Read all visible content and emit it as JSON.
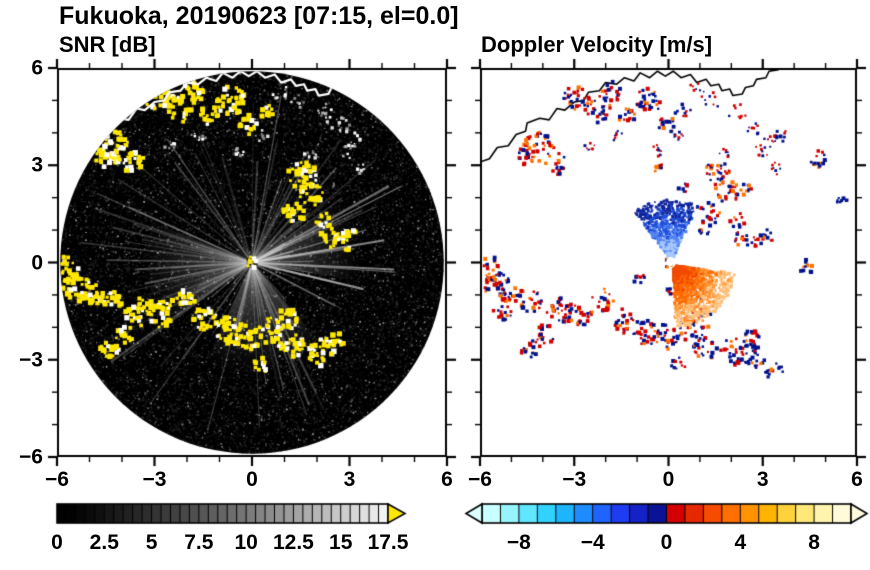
{
  "figure": {
    "title": "Fukuoka, 20190623 [07:15, el=0.0]"
  },
  "chart_data": [
    {
      "id": "snr",
      "type": "heatmap",
      "subtype": "radar-ppi-scan",
      "title": "SNR [dB]",
      "xlim": [
        -6,
        6
      ],
      "ylim": [
        -6,
        6
      ],
      "xticks": [
        -6,
        -3,
        0,
        3,
        6
      ],
      "yticks": [
        6,
        3,
        0,
        -3,
        -6
      ],
      "xtick_labels": [
        "−6",
        "−3",
        "0",
        "3",
        "6"
      ],
      "ytick_labels": [
        "6",
        "3",
        "0",
        "−3",
        "−6"
      ],
      "minor_tick_step": 1,
      "scan_radius": 5.9,
      "scan_background": "#000000",
      "echo_color": "#ffe800",
      "echo_color_alt": "#ffffff",
      "clutter_colors": [
        "#ffffff",
        "#e0e0e0",
        "#ababab",
        "#808080"
      ],
      "coastline_color": "#ffffff",
      "sidelobe_fans_az_deg": [
        [
          140,
          205
        ],
        [
          235,
          292
        ],
        [
          55,
          100
        ]
      ],
      "strong_echoes": [
        [
          -4.15,
          3.55,
          0.5
        ],
        [
          -3.6,
          3.05,
          0.35
        ],
        [
          -4.55,
          3.25,
          0.3
        ],
        [
          -2.95,
          5.1,
          0.4
        ],
        [
          -2.3,
          4.75,
          0.45
        ],
        [
          -1.85,
          5.25,
          0.35
        ],
        [
          -1.3,
          4.55,
          0.3
        ],
        [
          -0.65,
          5.0,
          0.45
        ],
        [
          -0.1,
          4.25,
          0.3
        ],
        [
          0.45,
          4.7,
          0.25
        ],
        [
          1.55,
          2.7,
          0.45
        ],
        [
          1.85,
          2.15,
          0.4
        ],
        [
          1.3,
          1.5,
          0.35
        ],
        [
          2.4,
          0.75,
          0.3
        ],
        [
          3.0,
          0.7,
          0.35
        ],
        [
          2.2,
          1.3,
          0.25
        ],
        [
          -5.7,
          -0.2,
          0.4
        ],
        [
          -5.4,
          -0.75,
          0.45
        ],
        [
          -4.95,
          -1.05,
          0.4
        ],
        [
          -4.35,
          -1.2,
          0.35
        ],
        [
          -3.45,
          -1.5,
          0.45
        ],
        [
          -2.8,
          -1.6,
          0.4
        ],
        [
          -2.1,
          -1.15,
          0.35
        ],
        [
          -1.45,
          -1.8,
          0.4
        ],
        [
          -0.7,
          -2.1,
          0.45
        ],
        [
          -0.1,
          -2.3,
          0.4
        ],
        [
          0.55,
          -2.1,
          0.4
        ],
        [
          1.05,
          -1.75,
          0.35
        ],
        [
          1.2,
          -2.6,
          0.4
        ],
        [
          2.1,
          -2.75,
          0.45
        ],
        [
          -4.4,
          -2.6,
          0.35
        ],
        [
          -3.9,
          -2.2,
          0.3
        ],
        [
          0.3,
          -3.15,
          0.25
        ],
        [
          2.6,
          -2.35,
          0.3
        ],
        [
          0.0,
          0.0,
          0.18
        ]
      ],
      "clutter_echoes": [
        [
          0.9,
          5.3,
          0.3
        ],
        [
          1.4,
          5.0,
          0.25
        ],
        [
          2.2,
          4.6,
          0.3
        ],
        [
          2.75,
          4.2,
          0.3
        ],
        [
          3.2,
          3.8,
          0.25
        ],
        [
          0.3,
          3.9,
          0.2
        ],
        [
          -0.4,
          3.45,
          0.2
        ],
        [
          1.8,
          3.35,
          0.2
        ],
        [
          2.95,
          3.45,
          0.25
        ],
        [
          -1.6,
          3.9,
          0.2
        ],
        [
          3.4,
          2.9,
          0.2
        ],
        [
          -2.5,
          3.6,
          0.2
        ]
      ],
      "colorbar": {
        "min": 0,
        "max": 17.5,
        "ticks": [
          0,
          2.5,
          5,
          7.5,
          10,
          12.5,
          15,
          17.5
        ],
        "tick_labels": [
          "0",
          "2.5",
          "5",
          "7.5",
          "10",
          "12.5",
          "15",
          "17.5"
        ],
        "minor_step": 0.5,
        "ramp": [
          "#000000",
          "#f2f2f2"
        ],
        "over_arrow_color": "#ffe800"
      }
    },
    {
      "id": "doppler",
      "type": "heatmap",
      "subtype": "radar-ppi-scan",
      "title": "Doppler Velocity [m/s]",
      "xlim": [
        -6,
        6
      ],
      "ylim": [
        -6,
        6
      ],
      "xticks": [
        -6,
        -3,
        0,
        3,
        6
      ],
      "yticks": [
        6,
        3,
        0,
        -3,
        -6
      ],
      "xtick_labels": [
        "−6",
        "−3",
        "0",
        "3",
        "6"
      ],
      "ytick_labels": [],
      "minor_tick_step": 1,
      "background": "#ffffff",
      "coastline_color": "#000000",
      "echo_colors": [
        "#00128c",
        "#cf0000",
        "#ff7300"
      ],
      "extra_echoes": [
        [
          0.75,
          -0.95,
          0.4
        ],
        [
          0.2,
          -0.8,
          0.25
        ],
        [
          -0.9,
          -0.55,
          0.2
        ],
        [
          3.6,
          3.9,
          0.25
        ],
        [
          4.8,
          3.2,
          0.3
        ],
        [
          5.5,
          1.95,
          0.2
        ],
        [
          4.4,
          -0.15,
          0.25
        ],
        [
          2.7,
          -2.9,
          0.4
        ],
        [
          3.35,
          -3.3,
          0.3
        ],
        [
          1.15,
          1.05,
          0.2
        ],
        [
          0.5,
          2.35,
          0.2
        ],
        [
          -0.3,
          2.9,
          0.15
        ],
        [
          -5.3,
          -1.6,
          0.3
        ],
        [
          2.5,
          2.2,
          0.25
        ]
      ],
      "fans": [
        {
          "name": "toward-fan",
          "cx": 0.05,
          "cy": 0.1,
          "az_deg": [
            -38,
            26
          ],
          "r": [
            0.12,
            1.95
          ],
          "n": 1100,
          "colors": [
            "#a8c8ff",
            "#5585f5",
            "#2050d8",
            "#10259c"
          ]
        },
        {
          "name": "away-fan",
          "cx": 0.1,
          "cy": -0.05,
          "az_deg": [
            97,
            178
          ],
          "r": [
            0.12,
            2.0
          ],
          "n": 1600,
          "colors": [
            "#f24a00",
            "#ff6a00",
            "#ff9433",
            "#ffc07a"
          ]
        }
      ],
      "colorbar": {
        "min": -10,
        "max": 10,
        "ticks": [
          -8,
          -4,
          0,
          4,
          8
        ],
        "tick_labels": [
          "−8",
          "−4",
          "0",
          "4",
          "8"
        ],
        "minor_step": 1,
        "segment_colors": [
          "#c8ffff",
          "#96f4ff",
          "#60e6ff",
          "#32d2ff",
          "#1eb4ff",
          "#1e8cff",
          "#2064ff",
          "#1e3cf0",
          "#1422c8",
          "#0a1396",
          "#d40000",
          "#e62800",
          "#f54c00",
          "#ff7000",
          "#ff9200",
          "#ffb400",
          "#ffd23c",
          "#ffe878",
          "#fff4ae",
          "#fffbd8"
        ],
        "under_arrow_color": "#dcffff",
        "over_arrow_color": "#fffce0"
      }
    }
  ],
  "coastline": [
    [
      -6.0,
      3.1
    ],
    [
      -5.7,
      3.2
    ],
    [
      -5.45,
      3.55
    ],
    [
      -5.1,
      3.6
    ],
    [
      -4.85,
      3.95
    ],
    [
      -4.55,
      4.05
    ],
    [
      -4.5,
      4.3
    ],
    [
      -4.1,
      4.45
    ],
    [
      -3.8,
      4.4
    ],
    [
      -3.55,
      4.75
    ],
    [
      -3.3,
      4.7
    ],
    [
      -3.0,
      4.95
    ],
    [
      -2.7,
      5.0
    ],
    [
      -2.55,
      5.25
    ],
    [
      -2.2,
      5.3
    ],
    [
      -2.0,
      5.55
    ],
    [
      -1.65,
      5.5
    ],
    [
      -1.4,
      5.7
    ],
    [
      -1.1,
      5.6
    ],
    [
      -0.9,
      5.85
    ],
    [
      -0.6,
      5.7
    ],
    [
      -0.35,
      5.9
    ],
    [
      -0.1,
      5.75
    ],
    [
      0.15,
      5.9
    ],
    [
      0.4,
      5.7
    ],
    [
      0.7,
      5.8
    ],
    [
      0.9,
      5.55
    ],
    [
      1.2,
      5.65
    ],
    [
      1.35,
      5.45
    ],
    [
      1.6,
      5.5
    ],
    [
      1.7,
      5.3
    ],
    [
      1.95,
      5.35
    ],
    [
      2.05,
      5.15
    ],
    [
      2.35,
      5.2
    ],
    [
      2.45,
      5.4
    ],
    [
      2.7,
      5.45
    ],
    [
      2.8,
      5.65
    ],
    [
      3.1,
      5.7
    ],
    [
      3.2,
      5.9
    ],
    [
      3.5,
      5.95
    ],
    [
      3.65,
      6.05
    ]
  ]
}
